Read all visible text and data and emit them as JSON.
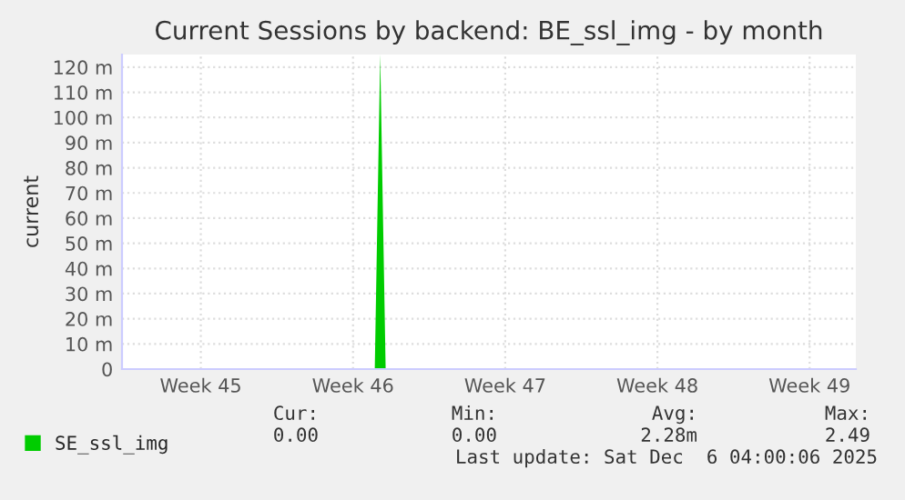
{
  "chart_data": {
    "type": "area",
    "title": "Current Sessions by backend: BE_ssl_img - by month",
    "ylabel": "current",
    "categories": [
      null,
      null,
      null,
      null,
      null,
      null,
      null,
      null,
      null,
      null,
      null,
      null,
      null,
      null,
      "Week 45",
      null,
      null,
      null,
      null,
      null,
      null,
      null,
      null,
      null,
      null,
      null,
      null,
      null,
      null,
      null,
      null,
      null,
      null,
      null,
      null,
      null,
      null,
      null,
      null,
      null,
      null,
      null,
      "Week 46",
      null,
      null,
      null,
      null,
      null,
      null,
      null,
      null,
      null,
      null,
      null,
      null,
      null,
      null,
      null,
      null,
      null,
      null,
      null,
      null,
      null,
      null,
      null,
      null,
      null,
      null,
      null,
      "Week 47",
      null,
      null,
      null,
      null,
      null,
      null,
      null,
      null,
      null,
      null,
      null,
      null,
      null,
      null,
      null,
      null,
      null,
      null,
      null,
      null,
      null,
      null,
      null,
      null,
      null,
      null,
      null,
      "Week 48",
      null,
      null,
      null,
      null,
      null,
      null,
      null,
      null,
      null,
      null,
      null,
      null,
      null,
      null,
      null,
      null,
      null,
      null,
      null,
      null,
      null,
      null,
      null,
      null,
      null,
      null,
      null,
      "Week 49",
      null,
      null,
      null,
      null,
      null,
      null,
      null,
      null
    ],
    "series": [
      {
        "name": "SE_ssl_img",
        "color": "#00cc00",
        "values": [
          0,
          0,
          0,
          0,
          0,
          0,
          0,
          0,
          0,
          0,
          0,
          0,
          0,
          0,
          0,
          0,
          0,
          0,
          0,
          0,
          0,
          0,
          0,
          0,
          0,
          0,
          0,
          0,
          0,
          0,
          0,
          0,
          0,
          0,
          0,
          0,
          0,
          0,
          0,
          0,
          0,
          0,
          0,
          0,
          0,
          0,
          0,
          125,
          0,
          0,
          0,
          0,
          0,
          0,
          0,
          0,
          0,
          0,
          0,
          0,
          0,
          0,
          0,
          0,
          0,
          0,
          0,
          0,
          0,
          0,
          0,
          0,
          0,
          0,
          0,
          0,
          0,
          0,
          0,
          0,
          0,
          0,
          0,
          0,
          0,
          0,
          0,
          0,
          0,
          0,
          0,
          0,
          0,
          0,
          0,
          0,
          0,
          0,
          0,
          0,
          0,
          0,
          0,
          0,
          0,
          0,
          0,
          0,
          0,
          0,
          0,
          0,
          0,
          0,
          0,
          0,
          0,
          0,
          0,
          0,
          0,
          0,
          0,
          0,
          0,
          0,
          0,
          0,
          0,
          0,
          0,
          0,
          0,
          0,
          0
        ]
      }
    ],
    "ylim": [
      0,
      125
    ],
    "yticks": [
      0,
      {
        "value": 10,
        "label": "10 m"
      },
      {
        "value": 20,
        "label": "20 m"
      },
      {
        "value": 30,
        "label": "30 m"
      },
      {
        "value": 40,
        "label": "40 m"
      },
      {
        "value": 50,
        "label": "50 m"
      },
      {
        "value": 60,
        "label": "60 m"
      },
      {
        "value": 70,
        "label": "70 m"
      },
      {
        "value": 80,
        "label": "80 m"
      },
      {
        "value": 90,
        "label": "90 m"
      },
      {
        "value": 100,
        "label": "100 m"
      },
      {
        "value": 110,
        "label": "110 m"
      },
      {
        "value": 120,
        "label": "120 m"
      }
    ],
    "grid": true,
    "legend": "bottom left",
    "annotations": [
      "Cur:",
      "Min:",
      "Avg:",
      "Max:",
      "0.00",
      "0.00",
      "2.28m",
      "2.49",
      "Last update: Sat Dec  6 04:00:06 2025"
    ]
  }
}
